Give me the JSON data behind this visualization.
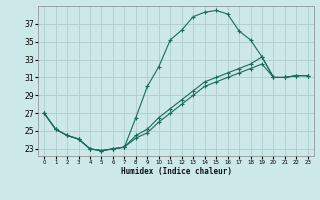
{
  "xlabel": "Humidex (Indice chaleur)",
  "bg_color": "#cce8e8",
  "grid_color": "#b0cccc",
  "line_color": "#1a6b5a",
  "xlim": [
    -0.5,
    23.5
  ],
  "ylim": [
    22.2,
    39.0
  ],
  "xticks": [
    0,
    1,
    2,
    3,
    4,
    5,
    6,
    7,
    8,
    9,
    10,
    11,
    12,
    13,
    14,
    15,
    16,
    17,
    18,
    19,
    20,
    21,
    22,
    23
  ],
  "yticks": [
    23,
    25,
    27,
    29,
    31,
    33,
    35,
    37
  ],
  "line1_x": [
    0,
    1,
    2,
    3,
    4,
    5,
    6,
    7,
    8,
    9,
    10,
    11,
    12,
    13,
    14,
    15,
    16,
    17,
    18,
    19,
    20,
    21,
    22,
    23
  ],
  "line1_y": [
    27.0,
    25.2,
    24.5,
    24.1,
    23.0,
    22.8,
    23.0,
    23.2,
    26.5,
    30.0,
    32.2,
    35.2,
    36.3,
    37.8,
    38.3,
    38.5,
    38.1,
    36.2,
    35.2,
    33.3,
    31.0,
    31.0,
    31.2,
    31.2
  ],
  "line2_x": [
    0,
    1,
    2,
    3,
    4,
    5,
    6,
    7,
    8,
    9,
    10,
    11,
    12,
    13,
    14,
    15,
    16,
    17,
    18,
    19,
    20,
    21,
    22,
    23
  ],
  "line2_y": [
    27.0,
    25.2,
    24.5,
    24.1,
    23.0,
    22.8,
    23.0,
    23.2,
    24.5,
    25.2,
    26.5,
    27.5,
    28.5,
    29.5,
    30.5,
    31.0,
    31.5,
    32.0,
    32.5,
    33.3,
    31.0,
    31.0,
    31.2,
    31.2
  ],
  "line3_x": [
    0,
    1,
    2,
    3,
    4,
    5,
    6,
    7,
    8,
    9,
    10,
    11,
    12,
    13,
    14,
    15,
    16,
    17,
    18,
    19,
    20,
    21,
    22,
    23
  ],
  "line3_y": [
    27.0,
    25.2,
    24.5,
    24.1,
    23.0,
    22.8,
    23.0,
    23.2,
    24.2,
    24.8,
    26.0,
    27.0,
    28.0,
    29.0,
    30.0,
    30.5,
    31.0,
    31.5,
    32.0,
    32.5,
    31.0,
    31.0,
    31.2,
    31.2
  ]
}
